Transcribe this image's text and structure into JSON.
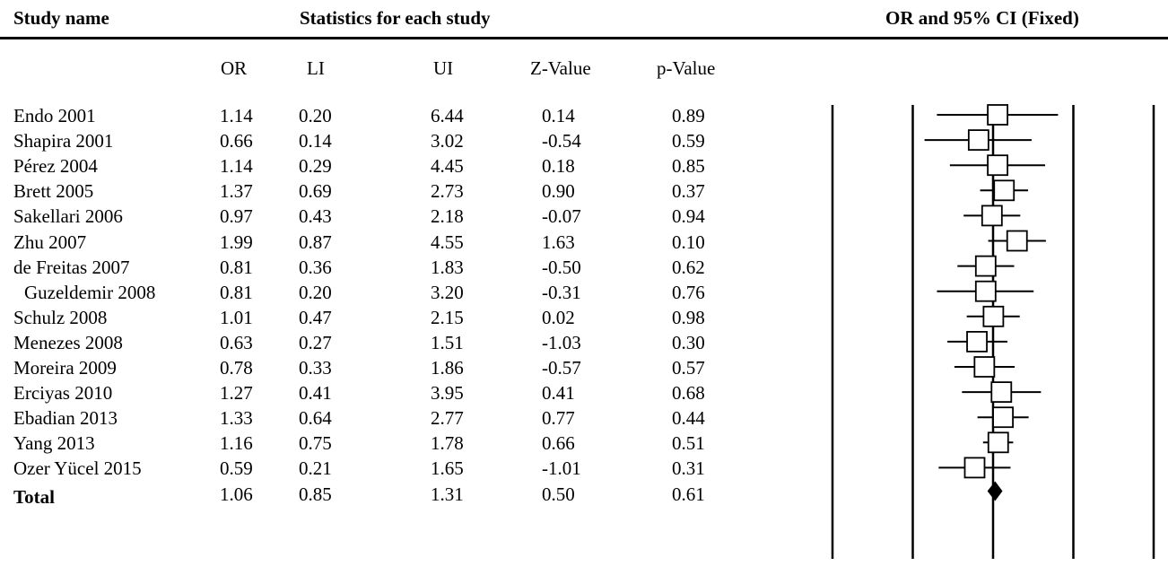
{
  "header": {
    "study_name": "Study name",
    "stats_title": "Statistics for each study",
    "plot_title": "OR and 95% CI (Fixed)"
  },
  "columns": [
    "OR",
    "LI",
    "UI",
    "Z-Value",
    "p-Value"
  ],
  "rows": [
    {
      "name": "Endo 2001",
      "or": "1.14",
      "li": "0.20",
      "ui": "6.44",
      "z": "0.14",
      "p": "0.89"
    },
    {
      "name": "Shapira 2001",
      "or": "0.66",
      "li": "0.14",
      "ui": "3.02",
      "z": "-0.54",
      "p": "0.59"
    },
    {
      "name": "Pérez 2004",
      "or": "1.14",
      "li": "0.29",
      "ui": "4.45",
      "z": "0.18",
      "p": "0.85"
    },
    {
      "name": "Brett 2005",
      "or": "1.37",
      "li": "0.69",
      "ui": "2.73",
      "z": "0.90",
      "p": "0.37"
    },
    {
      "name": "Sakellari 2006",
      "or": "0.97",
      "li": "0.43",
      "ui": "2.18",
      "z": "-0.07",
      "p": "0.94"
    },
    {
      "name": "Zhu 2007",
      "or": "1.99",
      "li": "0.87",
      "ui": "4.55",
      "z": "1.63",
      "p": "0.10"
    },
    {
      "name": "de Freitas 2007",
      "or": "0.81",
      "li": "0.36",
      "ui": "1.83",
      "z": "-0.50",
      "p": "0.62"
    },
    {
      "name": "Guzeldemir 2008",
      "or": "0.81",
      "li": "0.20",
      "ui": "3.20",
      "z": "-0.31",
      "p": "0.76"
    },
    {
      "name": "Schulz 2008",
      "or": "1.01",
      "li": "0.47",
      "ui": "2.15",
      "z": "0.02",
      "p": "0.98"
    },
    {
      "name": "Menezes 2008",
      "or": "0.63",
      "li": "0.27",
      "ui": "1.51",
      "z": "-1.03",
      "p": "0.30"
    },
    {
      "name": "Moreira 2009",
      "or": "0.78",
      "li": "0.33",
      "ui": "1.86",
      "z": "-0.57",
      "p": "0.57"
    },
    {
      "name": "Erciyas 2010",
      "or": "1.27",
      "li": "0.41",
      "ui": "3.95",
      "z": "0.41",
      "p": "0.68"
    },
    {
      "name": "Ebadian 2013",
      "or": "1.33",
      "li": "0.64",
      "ui": "2.77",
      "z": "0.77",
      "p": "0.44"
    },
    {
      "name": "Yang 2013",
      "or": "1.16",
      "li": "0.75",
      "ui": "1.78",
      "z": "0.66",
      "p": "0.51"
    },
    {
      "name": "Ozer Yücel 2015",
      "or": "0.59",
      "li": "0.21",
      "ui": "1.65",
      "z": "-1.01",
      "p": "0.31"
    }
  ],
  "total": {
    "name": "Total",
    "or": "1.06",
    "li": "0.85",
    "ui": "1.31",
    "z": "0.50",
    "p": "0.61"
  },
  "chart_data": {
    "type": "forest",
    "title": "OR and 95% CI (Fixed)",
    "scale": "log",
    "reference_lines": [
      0.01,
      0.1,
      1,
      10,
      100
    ],
    "xlim": [
      0.01,
      100
    ],
    "studies": [
      {
        "label": "Endo 2001",
        "or": 1.14,
        "lower": 0.2,
        "upper": 6.44
      },
      {
        "label": "Shapira 2001",
        "or": 0.66,
        "lower": 0.14,
        "upper": 3.02
      },
      {
        "label": "Pérez 2004",
        "or": 1.14,
        "lower": 0.29,
        "upper": 4.45
      },
      {
        "label": "Brett 2005",
        "or": 1.37,
        "lower": 0.69,
        "upper": 2.73
      },
      {
        "label": "Sakellari 2006",
        "or": 0.97,
        "lower": 0.43,
        "upper": 2.18
      },
      {
        "label": "Zhu 2007",
        "or": 1.99,
        "lower": 0.87,
        "upper": 4.55
      },
      {
        "label": "de Freitas 2007",
        "or": 0.81,
        "lower": 0.36,
        "upper": 1.83
      },
      {
        "label": "Guzeldemir 2008",
        "or": 0.81,
        "lower": 0.2,
        "upper": 3.2
      },
      {
        "label": "Schulz 2008",
        "or": 1.01,
        "lower": 0.47,
        "upper": 2.15
      },
      {
        "label": "Menezes 2008",
        "or": 0.63,
        "lower": 0.27,
        "upper": 1.51
      },
      {
        "label": "Moreira 2009",
        "or": 0.78,
        "lower": 0.33,
        "upper": 1.86
      },
      {
        "label": "Erciyas 2010",
        "or": 1.27,
        "lower": 0.41,
        "upper": 3.95
      },
      {
        "label": "Ebadian 2013",
        "or": 1.33,
        "lower": 0.64,
        "upper": 2.77
      },
      {
        "label": "Yang 2013",
        "or": 1.16,
        "lower": 0.75,
        "upper": 1.78
      },
      {
        "label": "Ozer Yücel 2015",
        "or": 0.59,
        "lower": 0.21,
        "upper": 1.65
      }
    ],
    "pooled": {
      "label": "Total",
      "or": 1.06,
      "lower": 0.85,
      "upper": 1.31
    }
  }
}
